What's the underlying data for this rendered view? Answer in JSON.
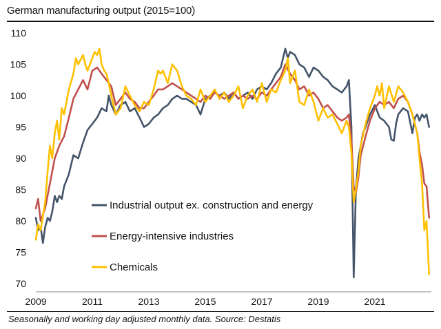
{
  "chart_data": {
    "type": "line",
    "title": "German manufacturing output (2015=100)",
    "source": "Seasonally and working day adjusted monthly data. Source: Destatis",
    "ylim": [
      70,
      110
    ],
    "yticks": [
      70,
      75,
      80,
      85,
      90,
      95,
      100,
      105,
      110
    ],
    "xlim": [
      2009,
      2023
    ],
    "xticks": [
      2009,
      2011,
      2013,
      2015,
      2017,
      2019,
      2021
    ],
    "grid": false,
    "legend": "inside-bottom-left",
    "series": [
      {
        "name": "Industrial output ex. construction and energy",
        "color": "#44546A",
        "points": [
          [
            2009.0,
            80.5
          ],
          [
            2009.08,
            78.5
          ],
          [
            2009.17,
            79.0
          ],
          [
            2009.25,
            76.5
          ],
          [
            2009.33,
            79.0
          ],
          [
            2009.42,
            80.5
          ],
          [
            2009.5,
            80.0
          ],
          [
            2009.58,
            81.5
          ],
          [
            2009.67,
            84.0
          ],
          [
            2009.75,
            83.0
          ],
          [
            2009.83,
            84.0
          ],
          [
            2009.92,
            83.5
          ],
          [
            2010.0,
            85.5
          ],
          [
            2010.17,
            87.5
          ],
          [
            2010.33,
            90.5
          ],
          [
            2010.5,
            90.0
          ],
          [
            2010.67,
            92.5
          ],
          [
            2010.83,
            94.5
          ],
          [
            2011.0,
            95.5
          ],
          [
            2011.17,
            96.5
          ],
          [
            2011.33,
            98.0
          ],
          [
            2011.5,
            97.5
          ],
          [
            2011.58,
            100.0
          ],
          [
            2011.67,
            98.5
          ],
          [
            2011.83,
            97.0
          ],
          [
            2012.0,
            98.5
          ],
          [
            2012.17,
            99.0
          ],
          [
            2012.33,
            97.5
          ],
          [
            2012.5,
            98.0
          ],
          [
            2012.67,
            96.5
          ],
          [
            2012.83,
            95.0
          ],
          [
            2013.0,
            95.5
          ],
          [
            2013.17,
            96.5
          ],
          [
            2013.33,
            97.0
          ],
          [
            2013.5,
            98.0
          ],
          [
            2013.67,
            98.5
          ],
          [
            2013.83,
            99.5
          ],
          [
            2014.0,
            100.0
          ],
          [
            2014.17,
            99.5
          ],
          [
            2014.33,
            99.5
          ],
          [
            2014.5,
            99.0
          ],
          [
            2014.67,
            98.5
          ],
          [
            2014.83,
            97.0
          ],
          [
            2015.0,
            99.5
          ],
          [
            2015.17,
            100.0
          ],
          [
            2015.33,
            100.5
          ],
          [
            2015.5,
            100.0
          ],
          [
            2015.67,
            100.5
          ],
          [
            2015.83,
            99.5
          ],
          [
            2016.0,
            100.5
          ],
          [
            2016.17,
            99.5
          ],
          [
            2016.33,
            100.0
          ],
          [
            2016.5,
            100.5
          ],
          [
            2016.67,
            99.5
          ],
          [
            2016.83,
            101.0
          ],
          [
            2017.0,
            101.5
          ],
          [
            2017.17,
            101.0
          ],
          [
            2017.33,
            102.0
          ],
          [
            2017.5,
            103.5
          ],
          [
            2017.67,
            104.5
          ],
          [
            2017.83,
            107.5
          ],
          [
            2017.92,
            106.0
          ],
          [
            2018.0,
            107.0
          ],
          [
            2018.17,
            106.5
          ],
          [
            2018.33,
            105.0
          ],
          [
            2018.5,
            104.5
          ],
          [
            2018.67,
            103.0
          ],
          [
            2018.83,
            104.5
          ],
          [
            2019.0,
            104.0
          ],
          [
            2019.17,
            103.0
          ],
          [
            2019.33,
            102.5
          ],
          [
            2019.5,
            101.5
          ],
          [
            2019.67,
            101.0
          ],
          [
            2019.83,
            100.5
          ],
          [
            2020.0,
            101.5
          ],
          [
            2020.08,
            102.5
          ],
          [
            2020.17,
            95.0
          ],
          [
            2020.25,
            71.0
          ],
          [
            2020.33,
            85.0
          ],
          [
            2020.42,
            90.0
          ],
          [
            2020.5,
            92.0
          ],
          [
            2020.58,
            94.0
          ],
          [
            2020.67,
            95.0
          ],
          [
            2020.83,
            97.0
          ],
          [
            2021.0,
            98.5
          ],
          [
            2021.17,
            96.5
          ],
          [
            2021.33,
            96.0
          ],
          [
            2021.5,
            95.0
          ],
          [
            2021.58,
            93.0
          ],
          [
            2021.67,
            92.8
          ],
          [
            2021.75,
            95.5
          ],
          [
            2021.83,
            97.0
          ],
          [
            2022.0,
            98.0
          ],
          [
            2022.17,
            97.5
          ],
          [
            2022.33,
            94.0
          ],
          [
            2022.42,
            96.5
          ],
          [
            2022.5,
            97.0
          ],
          [
            2022.58,
            96.0
          ],
          [
            2022.67,
            97.0
          ],
          [
            2022.75,
            96.5
          ],
          [
            2022.83,
            97.0
          ],
          [
            2022.92,
            95.0
          ]
        ]
      },
      {
        "name": "Energy-intensive industries",
        "color": "#C0504D",
        "points": [
          [
            2009.0,
            82.0
          ],
          [
            2009.08,
            83.5
          ],
          [
            2009.17,
            80.0
          ],
          [
            2009.33,
            82.0
          ],
          [
            2009.5,
            86.0
          ],
          [
            2009.67,
            90.0
          ],
          [
            2009.83,
            92.0
          ],
          [
            2010.0,
            93.5
          ],
          [
            2010.17,
            96.5
          ],
          [
            2010.33,
            99.5
          ],
          [
            2010.5,
            101.0
          ],
          [
            2010.67,
            102.5
          ],
          [
            2010.83,
            101.0
          ],
          [
            2011.0,
            104.0
          ],
          [
            2011.17,
            104.5
          ],
          [
            2011.33,
            103.5
          ],
          [
            2011.5,
            102.5
          ],
          [
            2011.67,
            101.5
          ],
          [
            2011.83,
            98.5
          ],
          [
            2012.0,
            99.5
          ],
          [
            2012.17,
            100.5
          ],
          [
            2012.33,
            99.5
          ],
          [
            2012.5,
            99.0
          ],
          [
            2012.67,
            98.0
          ],
          [
            2012.83,
            98.0
          ],
          [
            2013.0,
            99.0
          ],
          [
            2013.17,
            100.0
          ],
          [
            2013.33,
            101.0
          ],
          [
            2013.5,
            101.0
          ],
          [
            2013.67,
            101.5
          ],
          [
            2013.83,
            102.0
          ],
          [
            2014.0,
            101.5
          ],
          [
            2014.17,
            101.0
          ],
          [
            2014.33,
            100.5
          ],
          [
            2014.5,
            100.0
          ],
          [
            2014.67,
            99.5
          ],
          [
            2014.83,
            99.0
          ],
          [
            2015.0,
            100.0
          ],
          [
            2015.17,
            99.5
          ],
          [
            2015.33,
            100.5
          ],
          [
            2015.5,
            100.0
          ],
          [
            2015.67,
            99.5
          ],
          [
            2015.83,
            100.0
          ],
          [
            2016.0,
            100.5
          ],
          [
            2016.17,
            99.5
          ],
          [
            2016.33,
            100.0
          ],
          [
            2016.5,
            99.5
          ],
          [
            2016.67,
            100.0
          ],
          [
            2016.83,
            99.5
          ],
          [
            2017.0,
            100.5
          ],
          [
            2017.17,
            100.0
          ],
          [
            2017.33,
            101.0
          ],
          [
            2017.5,
            102.0
          ],
          [
            2017.67,
            103.0
          ],
          [
            2017.83,
            105.0
          ],
          [
            2018.0,
            103.5
          ],
          [
            2018.17,
            102.5
          ],
          [
            2018.33,
            101.0
          ],
          [
            2018.5,
            101.5
          ],
          [
            2018.67,
            100.0
          ],
          [
            2018.83,
            100.5
          ],
          [
            2019.0,
            99.5
          ],
          [
            2019.17,
            98.0
          ],
          [
            2019.33,
            98.5
          ],
          [
            2019.5,
            97.5
          ],
          [
            2019.67,
            96.5
          ],
          [
            2019.83,
            96.0
          ],
          [
            2020.0,
            96.5
          ],
          [
            2020.08,
            97.0
          ],
          [
            2020.17,
            93.0
          ],
          [
            2020.25,
            85.5
          ],
          [
            2020.33,
            84.5
          ],
          [
            2020.42,
            87.0
          ],
          [
            2020.5,
            90.5
          ],
          [
            2020.67,
            93.5
          ],
          [
            2020.83,
            96.0
          ],
          [
            2021.0,
            98.0
          ],
          [
            2021.17,
            99.0
          ],
          [
            2021.33,
            98.5
          ],
          [
            2021.5,
            99.0
          ],
          [
            2021.67,
            98.0
          ],
          [
            2021.83,
            99.5
          ],
          [
            2022.0,
            100.0
          ],
          [
            2022.17,
            99.0
          ],
          [
            2022.33,
            97.0
          ],
          [
            2022.5,
            94.0
          ],
          [
            2022.58,
            91.0
          ],
          [
            2022.67,
            89.0
          ],
          [
            2022.75,
            86.0
          ],
          [
            2022.83,
            85.5
          ],
          [
            2022.92,
            80.5
          ]
        ]
      },
      {
        "name": "Chemicals",
        "color": "#FFC000",
        "points": [
          [
            2009.0,
            77.0
          ],
          [
            2009.08,
            79.5
          ],
          [
            2009.17,
            78.5
          ],
          [
            2009.33,
            83.0
          ],
          [
            2009.42,
            88.0
          ],
          [
            2009.5,
            92.0
          ],
          [
            2009.58,
            90.0
          ],
          [
            2009.67,
            94.0
          ],
          [
            2009.75,
            96.0
          ],
          [
            2009.83,
            93.0
          ],
          [
            2009.92,
            98.0
          ],
          [
            2010.0,
            97.0
          ],
          [
            2010.17,
            101.0
          ],
          [
            2010.33,
            103.5
          ],
          [
            2010.42,
            106.0
          ],
          [
            2010.5,
            105.0
          ],
          [
            2010.67,
            106.5
          ],
          [
            2010.75,
            105.0
          ],
          [
            2010.83,
            104.0
          ],
          [
            2011.0,
            106.0
          ],
          [
            2011.08,
            107.0
          ],
          [
            2011.17,
            106.5
          ],
          [
            2011.25,
            107.5
          ],
          [
            2011.33,
            105.0
          ],
          [
            2011.42,
            104.0
          ],
          [
            2011.5,
            103.5
          ],
          [
            2011.58,
            102.0
          ],
          [
            2011.67,
            100.0
          ],
          [
            2011.75,
            98.5
          ],
          [
            2011.83,
            97.0
          ],
          [
            2012.0,
            98.0
          ],
          [
            2012.17,
            101.5
          ],
          [
            2012.33,
            100.0
          ],
          [
            2012.5,
            98.5
          ],
          [
            2012.67,
            97.5
          ],
          [
            2012.83,
            99.0
          ],
          [
            2013.0,
            98.5
          ],
          [
            2013.17,
            101.0
          ],
          [
            2013.33,
            104.0
          ],
          [
            2013.42,
            103.5
          ],
          [
            2013.5,
            104.0
          ],
          [
            2013.67,
            102.0
          ],
          [
            2013.83,
            105.0
          ],
          [
            2014.0,
            104.0
          ],
          [
            2014.17,
            101.5
          ],
          [
            2014.33,
            100.0
          ],
          [
            2014.5,
            99.5
          ],
          [
            2014.67,
            98.5
          ],
          [
            2014.83,
            101.0
          ],
          [
            2015.0,
            99.0
          ],
          [
            2015.17,
            100.0
          ],
          [
            2015.33,
            101.0
          ],
          [
            2015.5,
            99.5
          ],
          [
            2015.67,
            100.5
          ],
          [
            2015.83,
            99.0
          ],
          [
            2016.0,
            100.0
          ],
          [
            2016.17,
            101.5
          ],
          [
            2016.33,
            98.0
          ],
          [
            2016.5,
            100.0
          ],
          [
            2016.67,
            101.0
          ],
          [
            2016.83,
            99.0
          ],
          [
            2017.0,
            102.0
          ],
          [
            2017.17,
            99.0
          ],
          [
            2017.33,
            101.0
          ],
          [
            2017.5,
            100.5
          ],
          [
            2017.67,
            102.5
          ],
          [
            2017.83,
            104.0
          ],
          [
            2017.92,
            106.0
          ],
          [
            2018.0,
            102.0
          ],
          [
            2018.17,
            104.0
          ],
          [
            2018.33,
            99.0
          ],
          [
            2018.5,
            98.5
          ],
          [
            2018.67,
            101.0
          ],
          [
            2018.83,
            99.0
          ],
          [
            2019.0,
            96.0
          ],
          [
            2019.17,
            98.0
          ],
          [
            2019.33,
            96.5
          ],
          [
            2019.5,
            97.0
          ],
          [
            2019.67,
            95.5
          ],
          [
            2019.83,
            94.0
          ],
          [
            2020.0,
            96.0
          ],
          [
            2020.08,
            95.0
          ],
          [
            2020.17,
            91.0
          ],
          [
            2020.25,
            83.0
          ],
          [
            2020.33,
            85.0
          ],
          [
            2020.42,
            88.0
          ],
          [
            2020.5,
            92.0
          ],
          [
            2020.67,
            95.5
          ],
          [
            2020.83,
            98.0
          ],
          [
            2021.0,
            100.0
          ],
          [
            2021.08,
            101.5
          ],
          [
            2021.17,
            100.0
          ],
          [
            2021.25,
            102.0
          ],
          [
            2021.33,
            98.0
          ],
          [
            2021.5,
            101.5
          ],
          [
            2021.67,
            99.0
          ],
          [
            2021.83,
            101.5
          ],
          [
            2022.0,
            100.5
          ],
          [
            2022.17,
            99.0
          ],
          [
            2022.33,
            97.0
          ],
          [
            2022.5,
            94.0
          ],
          [
            2022.58,
            90.0
          ],
          [
            2022.67,
            86.0
          ],
          [
            2022.75,
            78.5
          ],
          [
            2022.83,
            80.0
          ],
          [
            2022.92,
            71.5
          ]
        ]
      }
    ]
  }
}
